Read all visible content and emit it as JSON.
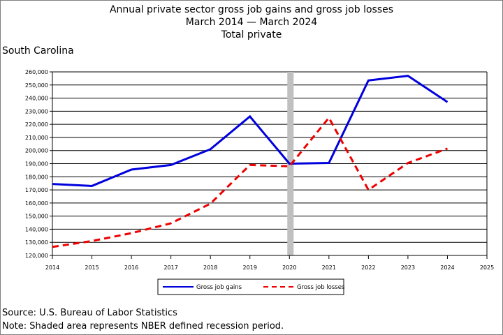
{
  "chart_data": {
    "type": "line",
    "title": "Annual private sector gross job gains and gross job losses",
    "subtitle_line2": "March 2014 — March 2024",
    "subtitle_line3": "Total private",
    "region": "South Carolina",
    "x": [
      2014,
      2015,
      2016,
      2017,
      2018,
      2019,
      2020,
      2021,
      2022,
      2023,
      2024
    ],
    "x_ticks": [
      "2014",
      "2015",
      "2016",
      "2017",
      "2018",
      "2019",
      "2020",
      "2021",
      "2022",
      "2023",
      "2024",
      "2025"
    ],
    "xlim": [
      2014,
      2025
    ],
    "y_ticks": [
      "120,000",
      "130,000",
      "140,000",
      "150,000",
      "160,000",
      "170,000",
      "180,000",
      "190,000",
      "200,000",
      "210,000",
      "220,000",
      "230,000",
      "240,000",
      "250,000",
      "260,000"
    ],
    "ylim": [
      120000,
      260000
    ],
    "grid": "horizontal",
    "recession_shade_x": 2020,
    "legend_position": "bottom",
    "series": [
      {
        "name": "Gross job gains",
        "color": "#0000dd",
        "style": "solid",
        "values": [
          174500,
          173000,
          185500,
          189000,
          201000,
          226000,
          190000,
          190500,
          253500,
          257000,
          237000
        ]
      },
      {
        "name": "Gross job losses",
        "color": "#ee0000",
        "style": "dashed",
        "values": [
          126500,
          131000,
          137000,
          144500,
          159500,
          189000,
          188000,
          225000,
          170000,
          190500,
          201500
        ]
      }
    ]
  },
  "footer": {
    "source": "Source: U.S. Bureau of Labor Statistics",
    "note": "Note: Shaded area represents NBER defined recession period."
  }
}
